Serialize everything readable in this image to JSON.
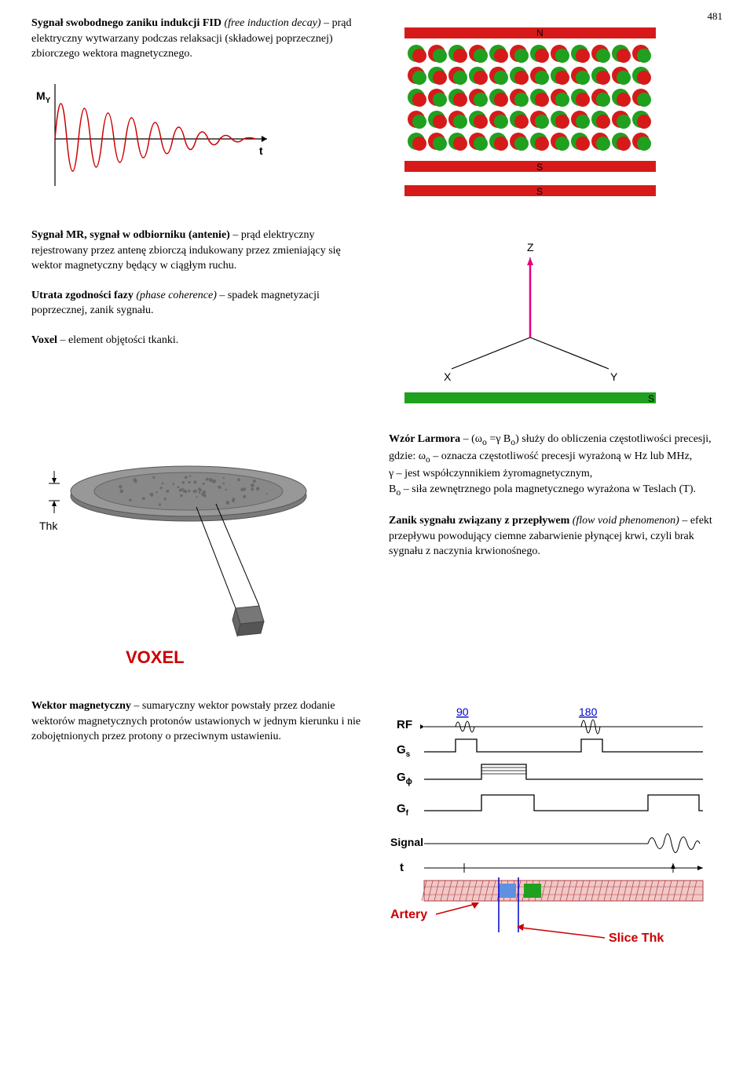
{
  "page_number": "481",
  "entries": {
    "fid": {
      "term": "Sygnał swobodnego zaniku indukcji FID",
      "italic": "(free induction decay)",
      "rest": " – prąd elektryczny wytwarzany podczas relaksacji (składowej poprzecznej) zbiorczego wektora magnetycznego."
    },
    "mr": {
      "term": "Sygnał MR, sygnał w odbiorniku (antenie)",
      "rest": " – prąd elektryczny rejestrowany przez antenę zbiorczą indukowany przez zmieniający się wektor magnetyczny będący w ciągłym ruchu."
    },
    "phase": {
      "term": "Utrata zgodności fazy",
      "italic": "(phase coherence)",
      "rest": " – spadek magnetyzacji poprzecznej, zanik sygnału."
    },
    "voxel": {
      "term": "Voxel",
      "rest": " – element objętości tkanki."
    },
    "larmor": {
      "term": "Wzór Larmora",
      "rest1": " – (ω",
      "sub1": "o",
      "rest2": " =γ B",
      "sub2": "o",
      "rest3": ") służy do obliczenia częstotliwości precesji,",
      "line2a": "gdzie: ω",
      "line2sub": "o",
      "line2b": " – oznacza częstotliwość precesji wyrażoną w Hz lub MHz,",
      "line3": "γ – jest współczynnikiem żyromagnetycznym,",
      "line4a": "B",
      "line4sub": "o",
      "line4b": " – siła zewnętrznego pola magnetycznego wyrażona w Teslach (T)."
    },
    "flowvoid": {
      "term": "Zanik sygnału związany z przepływem",
      "italic": "(flow void phenomenon)",
      "rest": " – efekt przepływu powodujący ciemne zabarwienie płynącej krwi, czyli brak sygnału z naczynia krwionośnego."
    },
    "wektor": {
      "term": "Wektor magnetyczny",
      "rest": " – sumaryczny wektor powstały przez dodanie wektorów magnetycznych protonów ustawionych w jednym kierunku i nie zobojętnionych przez protony o przeciwnym ustawieniu."
    }
  },
  "fid_chart": {
    "ylabel": "M",
    "ysub": "Y",
    "xlabel": "t",
    "stroke": "#cc0000",
    "stroke_width": 1.5,
    "axis_color": "#000000",
    "bg": "#ffffff"
  },
  "spin_diagram": {
    "n_label": "N",
    "s_label": "S",
    "bar_color": "#d61a1a",
    "green": "#1fa01f",
    "red": "#d61a1a",
    "rows": 5,
    "cols": 12
  },
  "axes_diagram": {
    "x_label": "X",
    "y_label": "Y",
    "z_label": "Z",
    "axis_color": "#000000",
    "vector_color": "#e6007e",
    "bar_n_color": "#d61a1a",
    "bar_s_color": "#1fa01f",
    "n_label": "N",
    "s_label": "S"
  },
  "voxel_diagram": {
    "thk_label": "Thk",
    "voxel_label": "VOXEL",
    "label_color": "#cc0000",
    "disk_fill": "#808080",
    "disk_edge": "#606060",
    "cube_fill": "#888888"
  },
  "pulse_diagram": {
    "rf_label": "RF",
    "gs_label": "G",
    "gs_sub": "s",
    "gphi_label": "G",
    "gphi_sub": "ϕ",
    "gf_label": "G",
    "gf_sub": "f",
    "signal_label": "Signal",
    "t_label": "t",
    "artery_label": "Artery",
    "slice_label": "Slice Thk",
    "p90": "90",
    "p180": "180",
    "line_color": "#000000",
    "blue": "#0000cc",
    "red": "#cc0000",
    "artery_fill": "#e8a0a0",
    "artery_hatch": "#b04040",
    "blue_block": "#6090e0",
    "green_block": "#1fa01f"
  }
}
